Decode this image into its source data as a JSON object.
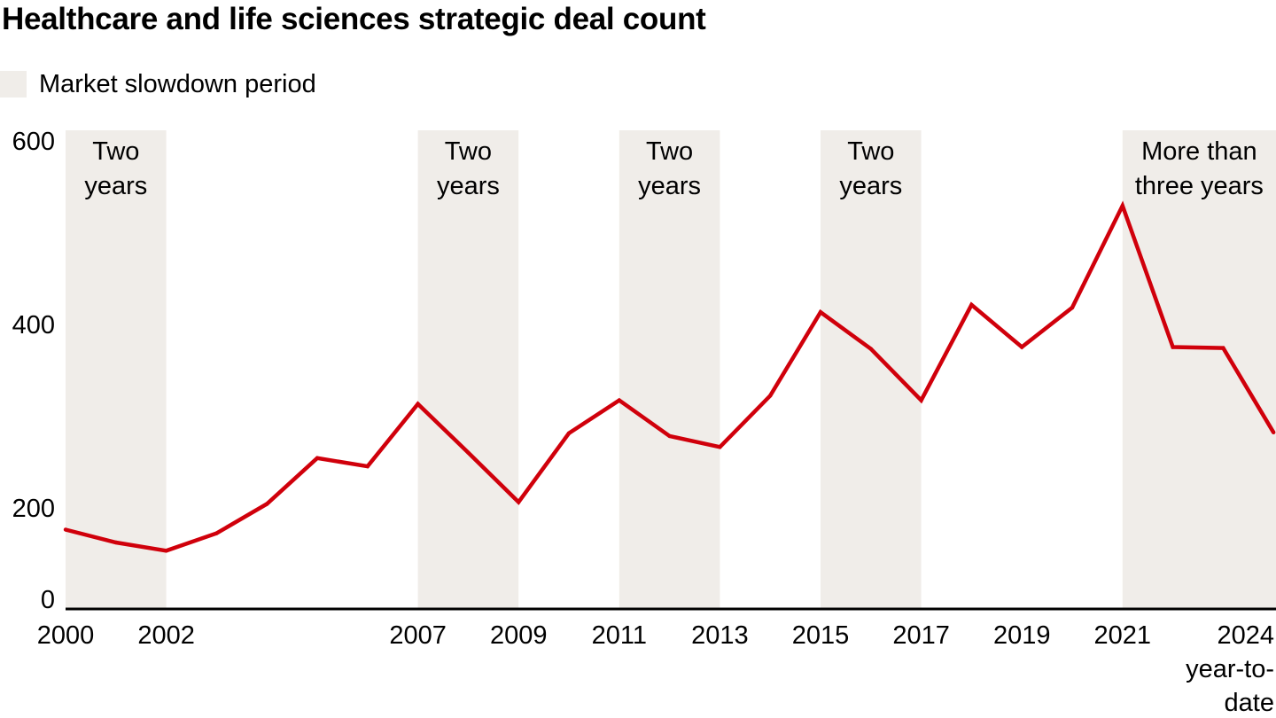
{
  "chart_data": {
    "type": "line",
    "title": "Healthcare and life sciences strategic deal count",
    "xlabel": "",
    "ylabel": "",
    "ylim": [
      0,
      600
    ],
    "y_ticks": [
      0,
      200,
      400,
      600
    ],
    "y_tick_labels": [
      "0",
      "200",
      "400",
      "600"
    ],
    "x": [
      2000,
      2001,
      2002,
      2003,
      2004,
      2005,
      2006,
      2007,
      2008,
      2009,
      2010,
      2011,
      2012,
      2013,
      2014,
      2015,
      2016,
      2017,
      2018,
      2019,
      2020,
      2021,
      2022,
      2023,
      2024
    ],
    "x_tick_labels": [
      {
        "year": 2000,
        "lines": [
          "2000"
        ]
      },
      {
        "year": 2002,
        "lines": [
          "2002"
        ]
      },
      {
        "year": 2007,
        "lines": [
          "2007"
        ]
      },
      {
        "year": 2009,
        "lines": [
          "2009"
        ]
      },
      {
        "year": 2011,
        "lines": [
          "2011"
        ]
      },
      {
        "year": 2013,
        "lines": [
          "2013"
        ]
      },
      {
        "year": 2015,
        "lines": [
          "2015"
        ]
      },
      {
        "year": 2017,
        "lines": [
          "2017"
        ]
      },
      {
        "year": 2019,
        "lines": [
          "2019"
        ]
      },
      {
        "year": 2021,
        "lines": [
          "2021"
        ]
      },
      {
        "year": 2024,
        "lines": [
          "2024",
          "year-to-",
          "date"
        ]
      }
    ],
    "series": [
      {
        "name": "Strategic deal count",
        "color": "#d0000b",
        "values": [
          186,
          172,
          163,
          182,
          214,
          264,
          255,
          323,
          270,
          216,
          291,
          327,
          288,
          276,
          332,
          423,
          383,
          327,
          431,
          385,
          428,
          539,
          385,
          384,
          292
        ]
      }
    ],
    "legend": {
      "position": "top-left",
      "entries": [
        {
          "label": "Market slowdown period",
          "color": "#f0ede9"
        }
      ]
    },
    "shaded_periods": [
      {
        "start": 2000,
        "end": 2002,
        "label_lines": [
          "Two",
          "years"
        ]
      },
      {
        "start": 2007,
        "end": 2009,
        "label_lines": [
          "Two",
          "years"
        ]
      },
      {
        "start": 2011,
        "end": 2013,
        "label_lines": [
          "Two",
          "years"
        ]
      },
      {
        "start": 2015,
        "end": 2017,
        "label_lines": [
          "Two",
          "years"
        ]
      },
      {
        "start": 2021,
        "end": 2024,
        "label_lines": [
          "More than",
          "three years"
        ]
      }
    ],
    "grid": false,
    "colors": {
      "line": "#d0000b",
      "band": "#f0ede9",
      "axis": "#000000"
    }
  }
}
